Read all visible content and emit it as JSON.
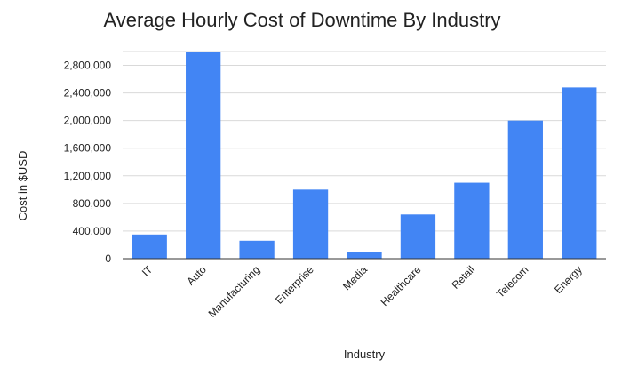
{
  "chart_data": {
    "type": "bar",
    "title": "Average Hourly Cost of Downtime By Industry",
    "xlabel": "Industry",
    "ylabel": "Cost in $USD",
    "categories": [
      "IT",
      "Auto",
      "Manufacturing",
      "Enterprise",
      "Media",
      "Healthcare",
      "Retail",
      "Telecom",
      "Energy"
    ],
    "values": [
      350000,
      3000000,
      260000,
      1000000,
      90000,
      640000,
      1100000,
      2000000,
      2480000
    ],
    "ylim": [
      0,
      3000000
    ],
    "yticks": [
      0,
      400000,
      800000,
      1200000,
      1600000,
      2000000,
      2400000,
      2800000
    ],
    "ytick_labels": [
      "0",
      "400,000",
      "800,000",
      "1,200,000",
      "1,600,000",
      "2,000,000",
      "2,400,000",
      "2,800,000"
    ],
    "grid": true,
    "legend": "none",
    "bar_color": "#4285f4"
  }
}
